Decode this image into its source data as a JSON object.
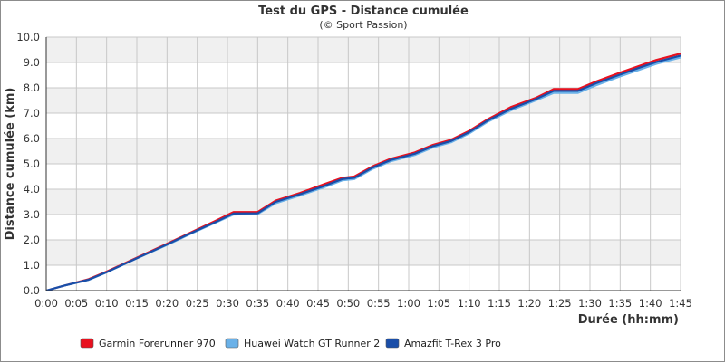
{
  "chart_data": {
    "type": "line",
    "title": "Test du GPS - Distance cumulée",
    "subtitle": "(© Sport Passion)",
    "xlabel": "Durée (hh:mm)",
    "ylabel": "Distance cumulée (km)",
    "x_ticks": [
      "0:00",
      "0:05",
      "0:10",
      "0:15",
      "0:20",
      "0:25",
      "0:30",
      "0:35",
      "0:40",
      "0:45",
      "0:50",
      "0:55",
      "1:00",
      "1:05",
      "1:10",
      "1:15",
      "1:20",
      "1:25",
      "1:30",
      "1:35",
      "1:40",
      "1:45"
    ],
    "y_ticks": [
      "0.0",
      "1.0",
      "2.0",
      "3.0",
      "4.0",
      "5.0",
      "6.0",
      "7.0",
      "8.0",
      "9.0",
      "10.0"
    ],
    "xlim": [
      0,
      105
    ],
    "ylim": [
      0,
      10
    ],
    "x_unit": "minutes",
    "grid": true,
    "legend_position": "bottom",
    "x": [
      0,
      3,
      7,
      10,
      15,
      20,
      24,
      28,
      31,
      35,
      38,
      42,
      46,
      49,
      51,
      54,
      57,
      61,
      64,
      67,
      70,
      73,
      77,
      81,
      84,
      88,
      91,
      95,
      98,
      101,
      105
    ],
    "series": [
      {
        "name": "Garmin Forerunner 970",
        "color": "#e8111f",
        "values": [
          0,
          0.2,
          0.45,
          0.75,
          1.3,
          1.85,
          2.3,
          2.75,
          3.1,
          3.1,
          3.55,
          3.85,
          4.2,
          4.45,
          4.5,
          4.9,
          5.2,
          5.45,
          5.75,
          5.95,
          6.3,
          6.75,
          7.25,
          7.6,
          7.95,
          7.95,
          8.25,
          8.6,
          8.85,
          9.1,
          9.35
        ]
      },
      {
        "name": "Huawei Watch GT Runner 2",
        "color": "#6ab1e8",
        "values": [
          0,
          0.2,
          0.42,
          0.72,
          1.27,
          1.8,
          2.25,
          2.68,
          3.0,
          3.02,
          3.45,
          3.75,
          4.08,
          4.35,
          4.4,
          4.8,
          5.1,
          5.35,
          5.65,
          5.85,
          6.2,
          6.65,
          7.12,
          7.5,
          7.8,
          7.8,
          8.1,
          8.45,
          8.7,
          8.95,
          9.2
        ]
      },
      {
        "name": "Amazfit T-Rex 3 Pro",
        "color": "#1a4ea8",
        "values": [
          0,
          0.2,
          0.43,
          0.73,
          1.28,
          1.82,
          2.27,
          2.7,
          3.04,
          3.05,
          3.5,
          3.8,
          4.13,
          4.4,
          4.45,
          4.85,
          5.15,
          5.4,
          5.7,
          5.9,
          6.25,
          6.7,
          7.18,
          7.55,
          7.88,
          7.88,
          8.18,
          8.52,
          8.78,
          9.02,
          9.27
        ]
      }
    ]
  },
  "colors": {
    "band": "#f0f0f0",
    "grid": "#c8c8c8",
    "axis": "#333333"
  }
}
